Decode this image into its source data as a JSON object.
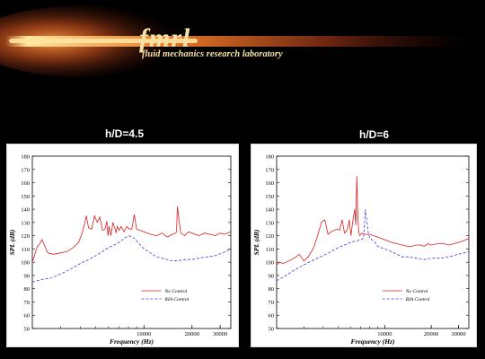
{
  "header": {
    "logo_word": "fmrl",
    "logo_subtitle": "fluid mechanics research laboratory",
    "colors": {
      "glow_core": "#ffd27a",
      "glow_mid": "#e9782a",
      "glow_outer": "#6a2410",
      "logo_text": "#f4e1a6"
    }
  },
  "panels": [
    {
      "title": "h/D=4.5"
    },
    {
      "title": "h/D=6"
    }
  ],
  "chart_data": [
    {
      "type": "line",
      "x_scale": "log",
      "xlabel": "Frequency (Hz)",
      "ylabel": "SPL (dB)",
      "xlim": [
        2000,
        35000
      ],
      "ylim": [
        50,
        180
      ],
      "yticks": [
        50,
        60,
        70,
        80,
        90,
        100,
        110,
        120,
        130,
        140,
        150,
        160,
        170,
        180
      ],
      "xticks": [
        10000,
        20000,
        30000
      ],
      "grid": false,
      "legend": "lower-right",
      "series": [
        {
          "name": "No Control",
          "color": "#d62020",
          "dash": "solid",
          "x": [
            2000,
            2050,
            2100,
            2150,
            2200,
            2300,
            2500,
            2700,
            3000,
            3300,
            3600,
            3900,
            4100,
            4250,
            4350,
            4500,
            4700,
            4900,
            5100,
            5300,
            5500,
            5700,
            5850,
            5950,
            6050,
            6200,
            6400,
            6500,
            6600,
            6700,
            6800,
            7000,
            7200,
            7500,
            7800,
            8100,
            8400,
            8700,
            9000,
            9500,
            10000,
            11000,
            12000,
            13000,
            14000,
            15000,
            15800,
            16000,
            16200,
            17000,
            18000,
            19000,
            20000,
            21000,
            22000,
            24000,
            26000,
            28000,
            30000,
            32000,
            35000
          ],
          "values": [
            100,
            104,
            108,
            112,
            113,
            117,
            107,
            106,
            107,
            108,
            111,
            115,
            122,
            129,
            135,
            126,
            125,
            135,
            130,
            134,
            124,
            125,
            131,
            120,
            127,
            120,
            130,
            127,
            125,
            122,
            127,
            124,
            127,
            123,
            127,
            125,
            125,
            136,
            125,
            124,
            123,
            121,
            120,
            122,
            119,
            121,
            122,
            123,
            142,
            122,
            120,
            123,
            122,
            121,
            120,
            122,
            121,
            120,
            122,
            121,
            123
          ]
        },
        {
          "name": "RIA Control",
          "color": "#3a3ae0",
          "dash": "dashed",
          "x": [
            2000,
            2300,
            2600,
            3000,
            3500,
            4000,
            4500,
            5000,
            5500,
            6000,
            6500,
            7000,
            7500,
            8000,
            8500,
            9000,
            9500,
            10000,
            11000,
            12000,
            13000,
            14000,
            15000,
            16000,
            18000,
            20000,
            22000,
            25000,
            28000,
            31000,
            35000
          ],
          "values": [
            85,
            87,
            88,
            91,
            95,
            99,
            102,
            105,
            108,
            111,
            113,
            115,
            118,
            120,
            119,
            116,
            113,
            110,
            107,
            104,
            103,
            102,
            101,
            101,
            102,
            102,
            103,
            104,
            105,
            107,
            110
          ]
        }
      ]
    },
    {
      "type": "line",
      "x_scale": "log",
      "xlabel": "Frequency (Hz)",
      "ylabel": "SPL (dB)",
      "xlim": [
        2000,
        35000
      ],
      "ylim": [
        50,
        180
      ],
      "yticks": [
        50,
        60,
        70,
        80,
        90,
        100,
        110,
        120,
        130,
        140,
        150,
        160,
        170,
        180
      ],
      "xticks": [
        10000,
        20000,
        30000
      ],
      "grid": false,
      "legend": "lower-right",
      "series": [
        {
          "name": "No Control",
          "color": "#d62020",
          "dash": "solid",
          "x": [
            2000,
            2100,
            2200,
            2400,
            2600,
            2800,
            3000,
            3200,
            3400,
            3500,
            3700,
            3900,
            4100,
            4300,
            4500,
            4700,
            4900,
            5100,
            5300,
            5500,
            5700,
            5900,
            6050,
            6200,
            6400,
            6500,
            6600,
            6700,
            6800,
            6900,
            7100,
            7500,
            8000,
            8500,
            9000,
            9500,
            10000,
            11000,
            12000,
            13000,
            14000,
            15000,
            16000,
            17000,
            18000,
            19000,
            20000,
            22000,
            24000,
            26000,
            28000,
            30000,
            32000,
            35000
          ],
          "values": [
            98,
            100,
            99,
            101,
            103,
            106,
            101,
            104,
            109,
            112,
            121,
            130,
            132,
            121,
            123,
            124,
            125,
            124,
            132,
            122,
            124,
            132,
            120,
            130,
            140,
            128,
            165,
            135,
            122,
            120,
            122,
            121,
            121,
            120,
            119,
            118,
            117,
            115,
            114,
            113,
            112,
            112,
            113,
            113,
            112,
            114,
            113,
            114,
            114,
            113,
            114,
            115,
            116,
            118
          ]
        },
        {
          "name": "RIA Control",
          "color": "#3a3ae0",
          "dash": "dashed",
          "x": [
            2000,
            2300,
            2600,
            3000,
            3500,
            4000,
            4500,
            5000,
            5500,
            6000,
            6500,
            7000,
            7300,
            7500,
            7800,
            8000,
            8500,
            9000,
            10000,
            11000,
            12000,
            13000,
            14000,
            16000,
            18000,
            20000,
            23000,
            26000,
            30000,
            35000
          ],
          "values": [
            86,
            90,
            94,
            98,
            102,
            105,
            108,
            111,
            113,
            115,
            116,
            117,
            118,
            140,
            123,
            118,
            116,
            112,
            110,
            108,
            106,
            104,
            104,
            103,
            102,
            103,
            103,
            104,
            106,
            108
          ]
        }
      ]
    }
  ]
}
